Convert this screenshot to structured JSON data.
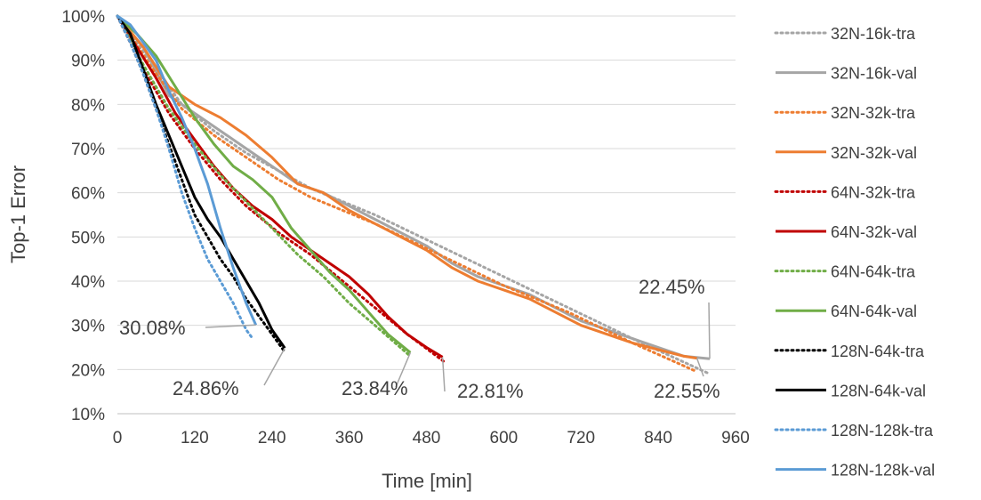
{
  "chart_data": {
    "type": "line",
    "title": "",
    "xlabel": "Time [min]",
    "ylabel": "Top-1 Error",
    "xlim": [
      0,
      960
    ],
    "ylim": [
      10,
      100
    ],
    "xticks": [
      0,
      120,
      240,
      360,
      480,
      600,
      720,
      840,
      960
    ],
    "yticks": [
      10,
      20,
      30,
      40,
      50,
      60,
      70,
      80,
      90,
      100
    ],
    "x_tick_labels": [
      "0",
      "120",
      "240",
      "360",
      "480",
      "600",
      "720",
      "840",
      "960"
    ],
    "y_tick_labels": [
      "10%",
      "20%",
      "30%",
      "40%",
      "50%",
      "60%",
      "70%",
      "80%",
      "90%",
      "100%"
    ],
    "grid": "horizontal",
    "legend_position": "right",
    "series": [
      {
        "name": "32N-16k-tra",
        "color": "#a5a5a5",
        "dashed": true,
        "x": [
          0,
          50,
          100,
          150,
          200,
          250,
          300,
          400,
          500,
          600,
          700,
          800,
          920
        ],
        "y": [
          100,
          90,
          80,
          74,
          69,
          65,
          61,
          55,
          48,
          41,
          34,
          27,
          19
        ]
      },
      {
        "name": "32N-16k-val",
        "color": "#a5a5a5",
        "dashed": false,
        "x": [
          0,
          40,
          80,
          120,
          160,
          200,
          240,
          280,
          320,
          360,
          400,
          440,
          480,
          520,
          560,
          600,
          640,
          680,
          720,
          760,
          800,
          840,
          880,
          920
        ],
        "y": [
          100,
          93,
          82,
          78,
          74,
          70,
          66,
          62,
          60,
          57,
          54,
          51,
          48,
          44,
          41,
          39,
          37,
          34,
          31,
          29,
          27,
          25,
          23,
          22.45
        ]
      },
      {
        "name": "32N-32k-tra",
        "color": "#ed7d31",
        "dashed": true,
        "x": [
          0,
          50,
          100,
          150,
          200,
          250,
          300,
          400,
          500,
          600,
          700,
          800,
          900
        ],
        "y": [
          100,
          89,
          79,
          73,
          68,
          63,
          59,
          53,
          46,
          39,
          33,
          26,
          19.5
        ]
      },
      {
        "name": "32N-32k-val",
        "color": "#ed7d31",
        "dashed": false,
        "x": [
          0,
          40,
          80,
          120,
          160,
          200,
          240,
          280,
          320,
          360,
          400,
          440,
          480,
          520,
          560,
          600,
          640,
          680,
          720,
          760,
          800,
          840,
          880,
          900
        ],
        "y": [
          100,
          93,
          84,
          80,
          77,
          73,
          68,
          62,
          60,
          56,
          53,
          50,
          47,
          43,
          40,
          38,
          36,
          33,
          30,
          28,
          26,
          24.5,
          23,
          22.55
        ]
      },
      {
        "name": "64N-32k-tra",
        "color": "#c00000",
        "dashed": true,
        "x": [
          0,
          40,
          80,
          120,
          160,
          200,
          250,
          300,
          350,
          400,
          450,
          510
        ],
        "y": [
          100,
          88,
          78,
          70,
          63,
          57,
          51,
          46,
          40,
          34,
          28,
          21.5
        ]
      },
      {
        "name": "64N-32k-val",
        "color": "#c00000",
        "dashed": false,
        "x": [
          0,
          30,
          60,
          90,
          120,
          150,
          180,
          210,
          240,
          270,
          300,
          330,
          360,
          390,
          420,
          450,
          480,
          505
        ],
        "y": [
          100,
          93,
          86,
          78,
          72,
          66,
          61,
          57,
          54,
          50,
          47,
          44,
          41,
          37,
          32,
          28,
          25,
          22.81
        ]
      },
      {
        "name": "64N-64k-tra",
        "color": "#70ad47",
        "dashed": true,
        "x": [
          0,
          40,
          80,
          120,
          160,
          200,
          240,
          280,
          320,
          360,
          400,
          455
        ],
        "y": [
          100,
          89,
          79,
          71,
          64,
          58,
          52,
          46,
          41,
          35,
          30,
          23
        ]
      },
      {
        "name": "64N-64k-val",
        "color": "#70ad47",
        "dashed": false,
        "x": [
          0,
          30,
          60,
          90,
          120,
          150,
          180,
          210,
          240,
          270,
          300,
          330,
          360,
          390,
          420,
          455
        ],
        "y": [
          100,
          96,
          91,
          84,
          77,
          71,
          66,
          63,
          59,
          52,
          47,
          42,
          38,
          33,
          28,
          23.84
        ]
      },
      {
        "name": "128N-64k-tra",
        "color": "#000000",
        "dashed": true,
        "x": [
          0,
          20,
          40,
          60,
          80,
          100,
          120,
          140,
          160,
          180,
          200,
          220,
          240,
          260
        ],
        "y": [
          100,
          94,
          87,
          79,
          71,
          63,
          55,
          50,
          45,
          41,
          36,
          32,
          28,
          24
        ]
      },
      {
        "name": "128N-64k-val",
        "color": "#000000",
        "dashed": false,
        "x": [
          0,
          20,
          40,
          60,
          80,
          100,
          120,
          140,
          160,
          180,
          200,
          220,
          240,
          260
        ],
        "y": [
          100,
          96,
          88,
          80,
          73,
          66,
          59,
          54,
          50,
          45,
          40,
          35,
          29,
          24.86
        ]
      },
      {
        "name": "128N-128k-tra",
        "color": "#5b9bd5",
        "dashed": true,
        "x": [
          0,
          20,
          40,
          60,
          80,
          100,
          120,
          140,
          160,
          180,
          200,
          210
        ],
        "y": [
          100,
          94,
          87,
          79,
          70,
          60,
          52,
          45,
          40,
          35,
          29,
          27
        ]
      },
      {
        "name": "128N-128k-val",
        "color": "#5b9bd5",
        "dashed": false,
        "x": [
          0,
          20,
          40,
          60,
          80,
          100,
          120,
          140,
          160,
          180,
          200,
          215
        ],
        "y": [
          100,
          98,
          94,
          90,
          83,
          77,
          70,
          62,
          52,
          43,
          35,
          30.08
        ]
      }
    ],
    "annotations": [
      {
        "text": "22.45%",
        "x": 920,
        "y": 22.45,
        "color": "#a5a5a5"
      },
      {
        "text": "22.55%",
        "x": 900,
        "y": 22.55,
        "color": "#ed7d31"
      },
      {
        "text": "22.81%",
        "x": 505,
        "y": 22.81,
        "color": "#c00000"
      },
      {
        "text": "23.84%",
        "x": 455,
        "y": 23.84,
        "color": "#70ad47"
      },
      {
        "text": "24.86%",
        "x": 260,
        "y": 24.86,
        "color": "#000000"
      },
      {
        "text": "30.08%",
        "x": 215,
        "y": 30.08,
        "color": "#5b9bd5"
      }
    ]
  }
}
